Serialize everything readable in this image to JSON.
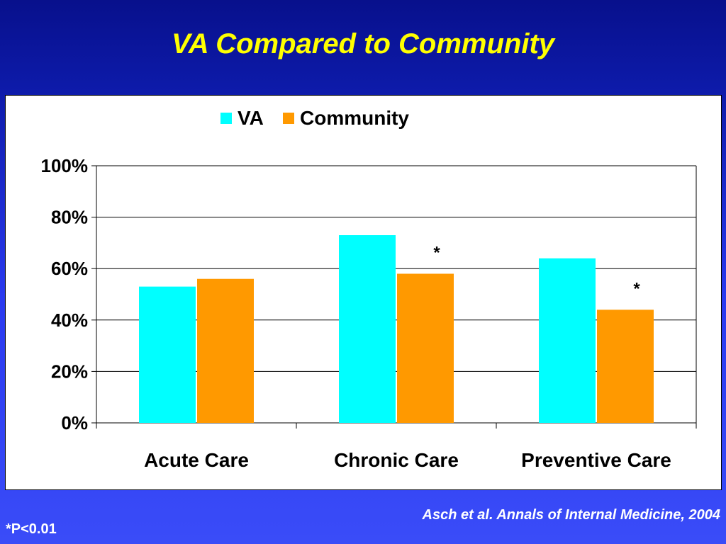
{
  "title": "VA Compared to Community",
  "citation": "Asch et al. Annals of Internal Medicine, 2004",
  "footnote": "*P<0.01",
  "colors": {
    "va": "#00ffff",
    "community": "#ff9900",
    "title": "#ffff00"
  },
  "chart_data": {
    "type": "bar",
    "categories": [
      "Acute Care",
      "Chronic Care",
      "Preventive Care"
    ],
    "series": [
      {
        "name": "VA",
        "values": [
          53,
          73,
          64
        ]
      },
      {
        "name": "Community",
        "values": [
          56,
          58,
          44
        ]
      }
    ],
    "ylim": [
      0,
      100
    ],
    "yticks": [
      "0%",
      "20%",
      "40%",
      "60%",
      "80%",
      "100%"
    ],
    "annotations": [
      "",
      "*",
      "*"
    ],
    "legend": "top",
    "grid": true
  }
}
